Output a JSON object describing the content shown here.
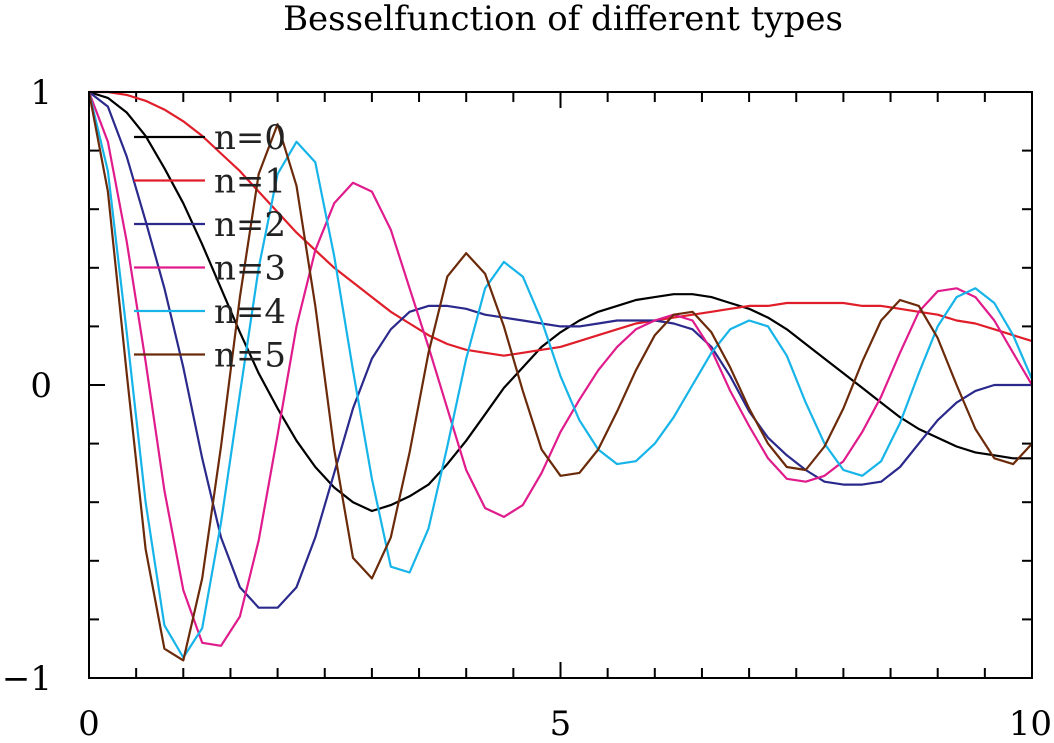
{
  "chart_data": {
    "type": "line",
    "title": "Besselfunction of different types",
    "xlabel": "",
    "ylabel": "",
    "xlim": [
      0,
      10
    ],
    "ylim": [
      -1,
      1
    ],
    "x_ticks": [
      {
        "value": 0,
        "label": "0"
      },
      {
        "value": 5,
        "label": "5"
      },
      {
        "value": 10,
        "label": "10"
      }
    ],
    "y_ticks": [
      {
        "value": 1,
        "label": "1"
      },
      {
        "value": 0,
        "label": "0"
      },
      {
        "value": -1,
        "label": "−1"
      }
    ],
    "x_minor_step": 0.5,
    "y_minor_step": 0.2,
    "grid": false,
    "legend_position": "top-left",
    "x": [
      0,
      0.2,
      0.4,
      0.6,
      0.8,
      1.0,
      1.2,
      1.4,
      1.6,
      1.8,
      2.0,
      2.2,
      2.4,
      2.6,
      2.8,
      3.0,
      3.2,
      3.4,
      3.6,
      3.8,
      4.0,
      4.2,
      4.4,
      4.6,
      4.8,
      5.0,
      5.2,
      5.4,
      5.6,
      5.8,
      6.0,
      6.2,
      6.4,
      6.6,
      6.8,
      7.0,
      7.2,
      7.4,
      7.6,
      7.8,
      8.0,
      8.2,
      8.4,
      8.6,
      8.8,
      9.0,
      9.2,
      9.4,
      9.6,
      9.8,
      10.0
    ],
    "series": [
      {
        "name": "n=0",
        "color": "#000000",
        "values": [
          1.0,
          0.98,
          0.93,
          0.85,
          0.74,
          0.62,
          0.48,
          0.33,
          0.18,
          0.04,
          -0.08,
          -0.19,
          -0.28,
          -0.35,
          -0.4,
          -0.43,
          -0.41,
          -0.38,
          -0.34,
          -0.27,
          -0.19,
          -0.1,
          -0.01,
          0.06,
          0.13,
          0.18,
          0.22,
          0.25,
          0.27,
          0.29,
          0.3,
          0.31,
          0.31,
          0.3,
          0.28,
          0.26,
          0.23,
          0.19,
          0.14,
          0.09,
          0.04,
          -0.01,
          -0.06,
          -0.11,
          -0.15,
          -0.18,
          -0.21,
          -0.23,
          -0.24,
          -0.25,
          -0.25
        ]
      },
      {
        "name": "n=1",
        "color": "#e01e2a",
        "values": [
          1.0,
          1.0,
          0.99,
          0.97,
          0.94,
          0.9,
          0.85,
          0.79,
          0.73,
          0.66,
          0.59,
          0.52,
          0.46,
          0.4,
          0.35,
          0.3,
          0.25,
          0.21,
          0.17,
          0.14,
          0.12,
          0.11,
          0.1,
          0.11,
          0.12,
          0.13,
          0.15,
          0.17,
          0.19,
          0.21,
          0.22,
          0.23,
          0.24,
          0.25,
          0.26,
          0.27,
          0.27,
          0.28,
          0.28,
          0.28,
          0.28,
          0.27,
          0.27,
          0.26,
          0.25,
          0.24,
          0.22,
          0.21,
          0.19,
          0.17,
          0.15
        ]
      },
      {
        "name": "n=2",
        "color": "#2b2a8c",
        "values": [
          1.0,
          0.95,
          0.78,
          0.56,
          0.33,
          0.06,
          -0.25,
          -0.52,
          -0.69,
          -0.76,
          -0.76,
          -0.69,
          -0.52,
          -0.3,
          -0.08,
          0.09,
          0.19,
          0.25,
          0.27,
          0.27,
          0.26,
          0.24,
          0.23,
          0.22,
          0.21,
          0.2,
          0.2,
          0.21,
          0.22,
          0.22,
          0.22,
          0.21,
          0.19,
          0.13,
          0.03,
          -0.09,
          -0.18,
          -0.24,
          -0.29,
          -0.33,
          -0.34,
          -0.34,
          -0.33,
          -0.28,
          -0.2,
          -0.12,
          -0.06,
          -0.02,
          0.0,
          0.0,
          0.0
        ]
      },
      {
        "name": "n=3",
        "color": "#e01c8c",
        "values": [
          1.0,
          0.83,
          0.49,
          0.08,
          -0.36,
          -0.7,
          -0.88,
          -0.89,
          -0.79,
          -0.53,
          -0.17,
          0.2,
          0.46,
          0.62,
          0.69,
          0.66,
          0.53,
          0.33,
          0.13,
          -0.08,
          -0.29,
          -0.42,
          -0.45,
          -0.41,
          -0.3,
          -0.16,
          -0.05,
          0.05,
          0.13,
          0.19,
          0.22,
          0.24,
          0.22,
          0.12,
          -0.02,
          -0.14,
          -0.25,
          -0.32,
          -0.33,
          -0.31,
          -0.26,
          -0.16,
          -0.04,
          0.11,
          0.25,
          0.32,
          0.33,
          0.3,
          0.22,
          0.11,
          0.0
        ]
      },
      {
        "name": "n=4",
        "color": "#16b4e8",
        "values": [
          1.0,
          0.73,
          0.18,
          -0.4,
          -0.82,
          -0.93,
          -0.83,
          -0.47,
          -0.03,
          0.4,
          0.72,
          0.83,
          0.76,
          0.44,
          0.05,
          -0.32,
          -0.62,
          -0.64,
          -0.49,
          -0.21,
          0.09,
          0.33,
          0.42,
          0.37,
          0.22,
          0.03,
          -0.12,
          -0.22,
          -0.27,
          -0.26,
          -0.2,
          -0.11,
          0.0,
          0.11,
          0.19,
          0.22,
          0.2,
          0.1,
          -0.06,
          -0.2,
          -0.29,
          -0.31,
          -0.26,
          -0.13,
          0.04,
          0.2,
          0.3,
          0.33,
          0.28,
          0.17,
          0.02
        ]
      },
      {
        "name": "n=5",
        "color": "#6b2a0a",
        "values": [
          1.0,
          0.66,
          0.04,
          -0.56,
          -0.9,
          -0.94,
          -0.66,
          -0.21,
          0.3,
          0.72,
          0.89,
          0.68,
          0.27,
          -0.22,
          -0.59,
          -0.66,
          -0.52,
          -0.23,
          0.11,
          0.37,
          0.45,
          0.38,
          0.2,
          -0.02,
          -0.22,
          -0.31,
          -0.3,
          -0.22,
          -0.09,
          0.05,
          0.17,
          0.24,
          0.25,
          0.18,
          0.06,
          -0.08,
          -0.2,
          -0.28,
          -0.29,
          -0.21,
          -0.08,
          0.08,
          0.22,
          0.29,
          0.27,
          0.16,
          0.0,
          -0.15,
          -0.25,
          -0.27,
          -0.2
        ]
      }
    ]
  }
}
